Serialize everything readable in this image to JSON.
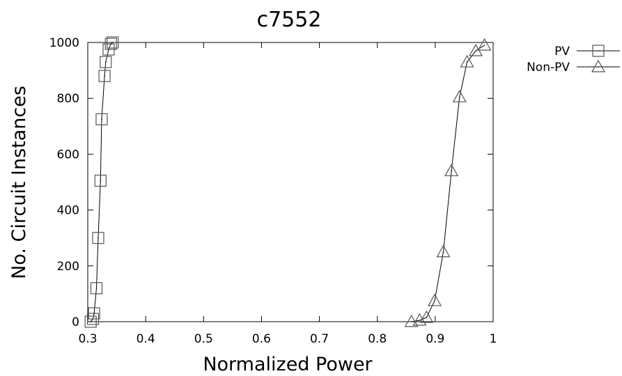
{
  "chart_data": {
    "type": "line",
    "title": "c7552",
    "xlabel": "Normalized Power",
    "ylabel": "No. Circuit Instances",
    "xlim": [
      0.3,
      1.0
    ],
    "ylim": [
      0,
      1000
    ],
    "xticks": [
      "0.3",
      "0.4",
      "0.5",
      "0.6",
      "0.7",
      "0.8",
      "0.9",
      "1"
    ],
    "yticks": [
      "0",
      "200",
      "400",
      "600",
      "800",
      "1000"
    ],
    "grid": false,
    "legend_position": "outside-top-right",
    "series": [
      {
        "name": "PV",
        "marker": "square",
        "x": [
          0.305,
          0.309,
          0.311,
          0.315,
          0.318,
          0.322,
          0.324,
          0.329,
          0.331,
          0.336,
          0.34,
          0.343
        ],
        "y": [
          0,
          10,
          30,
          120,
          300,
          505,
          725,
          880,
          930,
          975,
          995,
          1000
        ]
      },
      {
        "name": "Non-PV",
        "marker": "triangle",
        "x": [
          0.859,
          0.873,
          0.885,
          0.899,
          0.914,
          0.928,
          0.942,
          0.955,
          0.97,
          0.985
        ],
        "y": [
          0,
          5,
          15,
          75,
          250,
          540,
          805,
          930,
          970,
          990
        ]
      }
    ],
    "colors": {
      "line": "#000000",
      "marker_stroke": "#555555"
    }
  }
}
